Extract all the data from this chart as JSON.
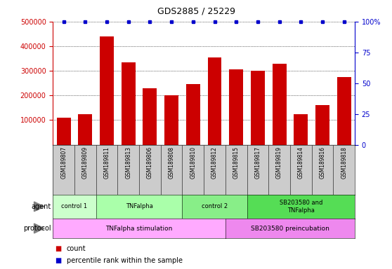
{
  "title": "GDS2885 / 25229",
  "samples": [
    "GSM189807",
    "GSM189809",
    "GSM189811",
    "GSM189813",
    "GSM189806",
    "GSM189808",
    "GSM189810",
    "GSM189812",
    "GSM189815",
    "GSM189817",
    "GSM189819",
    "GSM189814",
    "GSM189816",
    "GSM189818"
  ],
  "counts": [
    110000,
    125000,
    440000,
    335000,
    230000,
    200000,
    245000,
    355000,
    305000,
    300000,
    330000,
    125000,
    160000,
    275000
  ],
  "bar_color": "#cc0000",
  "dot_color": "#0000cc",
  "ylim_left": [
    0,
    500000
  ],
  "yticks_left": [
    100000,
    200000,
    300000,
    400000,
    500000
  ],
  "ytick_labels_left": [
    "100000",
    "200000",
    "300000",
    "400000",
    "500000"
  ],
  "yticks_right": [
    0,
    25,
    50,
    75,
    100
  ],
  "ytick_labels_right": [
    "0",
    "25",
    "50",
    "75",
    "100%"
  ],
  "agent_groups": [
    {
      "label": "control 1",
      "start": 0,
      "end": 2,
      "color": "#ccffcc"
    },
    {
      "label": "TNFalpha",
      "start": 2,
      "end": 6,
      "color": "#aaffaa"
    },
    {
      "label": "control 2",
      "start": 6,
      "end": 9,
      "color": "#88ee88"
    },
    {
      "label": "SB203580 and\nTNFalpha",
      "start": 9,
      "end": 14,
      "color": "#55dd55"
    }
  ],
  "protocol_groups": [
    {
      "label": "TNFalpha stimulation",
      "start": 0,
      "end": 8,
      "color": "#ffaaff"
    },
    {
      "label": "SB203580 preincubation",
      "start": 8,
      "end": 14,
      "color": "#ee88ee"
    }
  ],
  "sample_box_color": "#cccccc",
  "legend_count_color": "#cc0000",
  "legend_dot_color": "#0000cc",
  "legend_count_label": "count",
  "legend_dot_label": "percentile rank within the sample"
}
